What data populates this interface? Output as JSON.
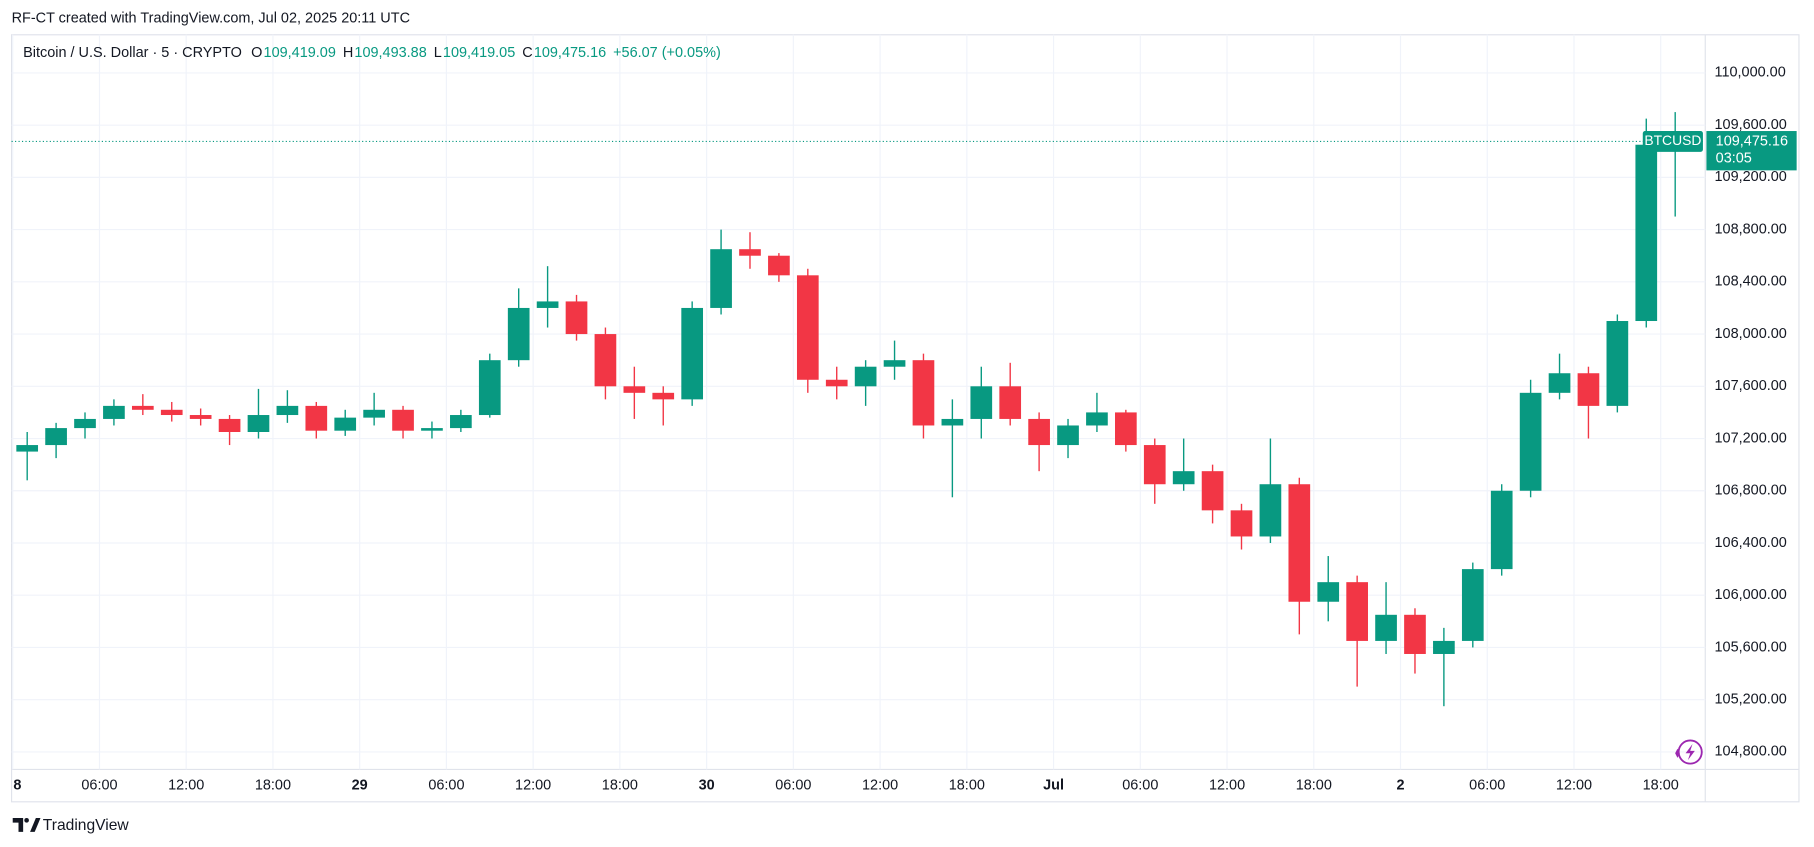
{
  "header": {
    "created": "RF-CT created with TradingView.com, Jul 02, 2025 20:11 UTC"
  },
  "chart_data": {
    "type": "candlestick",
    "symbol": "Bitcoin / U.S. Dollar · 5 · CRYPTO",
    "ohlc_legend": {
      "open_key": "O",
      "open": "109,419.09",
      "high_key": "H",
      "high": "109,493.88",
      "low_key": "L",
      "low": "109,419.05",
      "close_key": "C",
      "close": "109,475.16",
      "change": "+56.07 (+0.05%)"
    },
    "up_color": "#089981",
    "down_color": "#f23645",
    "x": [
      1,
      3,
      5,
      7,
      9,
      11,
      13,
      15,
      17,
      19,
      21,
      23,
      25,
      27,
      29,
      31,
      33,
      35,
      37,
      39,
      41,
      43,
      45,
      47,
      49,
      51,
      53,
      55,
      57,
      59,
      61,
      63,
      65,
      67,
      69,
      71,
      73,
      75,
      77,
      79,
      81,
      83,
      85,
      87,
      89,
      91,
      93,
      95,
      97,
      99,
      101,
      103,
      105,
      107,
      109,
      111,
      113,
      115
    ],
    "open": [
      107100,
      107150,
      107280,
      107350,
      107450,
      107420,
      107380,
      107350,
      107250,
      107380,
      107450,
      107260,
      107360,
      107420,
      107260,
      107280,
      107380,
      107800,
      108200,
      108250,
      108000,
      107600,
      107550,
      107500,
      108200,
      108650,
      108600,
      108450,
      107650,
      107600,
      107750,
      107800,
      107300,
      107350,
      107600,
      107350,
      107150,
      107300,
      107400,
      107150,
      106850,
      106950,
      106650,
      106450,
      106850,
      105950,
      106100,
      105650,
      105850,
      105550,
      105650,
      106200,
      106800,
      107550,
      107700,
      107450,
      108100,
      109450
    ],
    "high": [
      107250,
      107320,
      107400,
      107500,
      107540,
      107480,
      107430,
      107380,
      107580,
      107570,
      107480,
      107420,
      107550,
      107450,
      107330,
      107420,
      107850,
      108350,
      108520,
      108300,
      108050,
      107750,
      107600,
      108250,
      108800,
      108780,
      108620,
      108500,
      107750,
      107800,
      107950,
      107850,
      107500,
      107750,
      107780,
      107400,
      107350,
      107550,
      107420,
      107200,
      107200,
      107000,
      106700,
      107200,
      106900,
      106300,
      106150,
      106100,
      105900,
      105750,
      106250,
      106850,
      107650,
      107850,
      107750,
      108150,
      109650,
      109700
    ],
    "low": [
      106880,
      107050,
      107200,
      107300,
      107380,
      107330,
      107300,
      107150,
      107200,
      107320,
      107200,
      107220,
      107300,
      107200,
      107200,
      107250,
      107360,
      107750,
      108050,
      107950,
      107500,
      107350,
      107300,
      107450,
      108150,
      108500,
      108400,
      107550,
      107500,
      107450,
      107650,
      107200,
      106750,
      107200,
      107300,
      106950,
      107050,
      107250,
      107100,
      106700,
      106800,
      106550,
      106350,
      106400,
      105700,
      105800,
      105300,
      105550,
      105400,
      105150,
      105600,
      106150,
      106750,
      107500,
      107200,
      107400,
      108050,
      108900
    ],
    "close": [
      107150,
      107280,
      107350,
      107450,
      107420,
      107380,
      107350,
      107250,
      107380,
      107450,
      107260,
      107360,
      107420,
      107260,
      107280,
      107380,
      107800,
      108200,
      108250,
      108000,
      107600,
      107550,
      107500,
      108200,
      108650,
      108600,
      108450,
      107650,
      107600,
      107750,
      107800,
      107300,
      107350,
      107600,
      107350,
      107150,
      107300,
      107400,
      107150,
      106850,
      106950,
      106650,
      106450,
      106850,
      105950,
      106100,
      105650,
      105850,
      105550,
      105650,
      106200,
      106800,
      107550,
      107700,
      107450,
      108100,
      109450,
      109475.16
    ],
    "xlim": [
      0,
      117
    ],
    "xticks": [
      {
        "value": 0,
        "label": "8"
      },
      {
        "value": 6,
        "label": "06:00"
      },
      {
        "value": 12,
        "label": "12:00"
      },
      {
        "value": 18,
        "label": "18:00"
      },
      {
        "value": 24,
        "label": "29"
      },
      {
        "value": 30,
        "label": "06:00"
      },
      {
        "value": 36,
        "label": "12:00"
      },
      {
        "value": 42,
        "label": "18:00"
      },
      {
        "value": 48,
        "label": "30"
      },
      {
        "value": 54,
        "label": "06:00"
      },
      {
        "value": 60,
        "label": "12:00"
      },
      {
        "value": 66,
        "label": "18:00"
      },
      {
        "value": 72,
        "label": "Jul"
      },
      {
        "value": 78,
        "label": "06:00"
      },
      {
        "value": 84,
        "label": "12:00"
      },
      {
        "value": 90,
        "label": "18:00"
      },
      {
        "value": 96,
        "label": "2"
      },
      {
        "value": 102,
        "label": "06:00"
      },
      {
        "value": 108,
        "label": "12:00"
      },
      {
        "value": 114,
        "label": "18:00"
      }
    ],
    "ylim": [
      104666,
      110292
    ],
    "yticks": [
      {
        "value": 104800,
        "label": "104,800.00"
      },
      {
        "value": 105200,
        "label": "105,200.00"
      },
      {
        "value": 105600,
        "label": "105,600.00"
      },
      {
        "value": 106000,
        "label": "106,000.00"
      },
      {
        "value": 106400,
        "label": "106,400.00"
      },
      {
        "value": 106800,
        "label": "106,800.00"
      },
      {
        "value": 107200,
        "label": "107,200.00"
      },
      {
        "value": 107600,
        "label": "107,600.00"
      },
      {
        "value": 108000,
        "label": "108,000.00"
      },
      {
        "value": 108400,
        "label": "108,400.00"
      },
      {
        "value": 108800,
        "label": "108,800.00"
      },
      {
        "value": 109200,
        "label": "109,200.00"
      },
      {
        "value": 109600,
        "label": "109,600.00"
      },
      {
        "value": 110000,
        "label": "110,000.00"
      }
    ],
    "grid": true,
    "last_price": 109475.16,
    "last_price_label": "109,475.16",
    "ticker": "BTCUSD",
    "countdown": "03:05"
  },
  "footer": {
    "brand": "TradingView"
  }
}
